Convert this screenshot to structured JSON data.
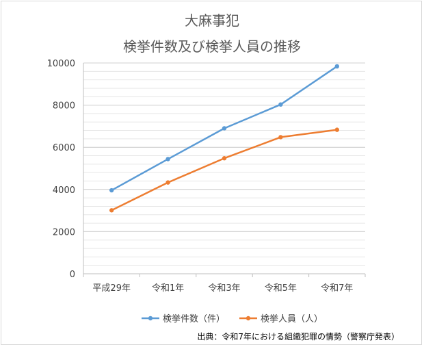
{
  "chart_data": {
    "type": "line",
    "title": "大麻事犯",
    "subtitle": "検挙件数及び検挙人員の推移",
    "categories": [
      "平成29年",
      "令和1年",
      "令和3年",
      "令和5年",
      "令和7年"
    ],
    "series": [
      {
        "name": "検挙件数（件）",
        "color": "#5b9bd5",
        "values": [
          3960,
          5440,
          6900,
          8030,
          9840
        ]
      },
      {
        "name": "検挙人員（人）",
        "color": "#ed7d31",
        "values": [
          3010,
          4330,
          5480,
          6480,
          6830
        ]
      }
    ],
    "yticks": [
      "0",
      "2000",
      "4000",
      "6000",
      "8000",
      "10000"
    ],
    "ylim": [
      0,
      10000
    ],
    "grid": true,
    "legend_position": "bottom"
  },
  "source": "出典：令和7年における組織犯罪の情勢（警察庁発表）",
  "colors": {
    "axis": "#bfbfbf",
    "grid": "#e6e6e6"
  }
}
